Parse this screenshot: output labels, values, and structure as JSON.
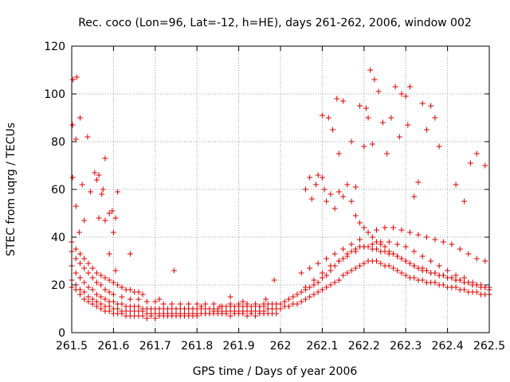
{
  "chart_data": {
    "type": "scatter",
    "title": "Rec. coco (Lon=96, Lat=-12, h=HE), days 261-262, 2006, window 002",
    "xlabel": "GPS time / Days of year 2006",
    "ylabel": "STEC from uqrg / TECUs",
    "xlim": [
      261.5,
      262.5
    ],
    "ylim": [
      0,
      120
    ],
    "x_ticks": [
      261.5,
      261.6,
      261.7,
      261.8,
      261.9,
      262.0,
      262.1,
      262.2,
      262.3,
      262.4,
      262.5
    ],
    "x_tick_labels": [
      "261.5",
      "261.6",
      "261.7",
      "261.8",
      "261.9",
      "262",
      "262.1",
      "262.2",
      "262.3",
      "262.4",
      "262.5"
    ],
    "y_ticks": [
      0,
      20,
      40,
      60,
      80,
      100,
      120
    ],
    "y_tick_labels": [
      "0",
      "20",
      "40",
      "60",
      "80",
      "100",
      "120"
    ],
    "grid": true,
    "marker": "+",
    "color": "#e00000",
    "series": [
      {
        "name": "STEC",
        "x": [
          261.502,
          261.503,
          261.51,
          261.512,
          261.52,
          261.538,
          261.56,
          261.565,
          261.575,
          261.58,
          261.59,
          261.597,
          261.605,
          261.61,
          261.502,
          261.51,
          261.518,
          261.525,
          261.53,
          261.545,
          261.555,
          261.565,
          261.572,
          261.58,
          261.59,
          261.6,
          261.605,
          261.64,
          261.5,
          261.51,
          261.52,
          261.53,
          261.54,
          261.55,
          261.56,
          261.57,
          261.58,
          261.59,
          261.6,
          261.61,
          261.62,
          261.63,
          261.64,
          261.65,
          261.66,
          261.67,
          261.68,
          261.69,
          261.7,
          261.71,
          261.72,
          261.73,
          261.74,
          261.75,
          261.76,
          261.77,
          261.78,
          261.79,
          261.8,
          261.81,
          261.82,
          261.83,
          261.84,
          261.85,
          261.86,
          261.87,
          261.88,
          261.89,
          261.9,
          261.91,
          261.92,
          261.93,
          261.94,
          261.95,
          261.96,
          261.97,
          261.98,
          261.99,
          261.5,
          261.51,
          261.52,
          261.53,
          261.54,
          261.55,
          261.56,
          261.57,
          261.58,
          261.59,
          261.6,
          261.61,
          261.62,
          261.63,
          261.64,
          261.65,
          261.66,
          261.67,
          261.68,
          261.69,
          261.7,
          261.71,
          261.72,
          261.73,
          261.74,
          261.75,
          261.76,
          261.77,
          261.78,
          261.79,
          261.8,
          261.81,
          261.82,
          261.83,
          261.84,
          261.85,
          261.86,
          261.87,
          261.88,
          261.89,
          261.9,
          261.91,
          261.92,
          261.93,
          261.94,
          261.95,
          261.96,
          261.97,
          261.98,
          261.99,
          261.5,
          261.51,
          261.52,
          261.53,
          261.54,
          261.55,
          261.56,
          261.57,
          261.58,
          261.59,
          261.6,
          261.61,
          261.62,
          261.63,
          261.64,
          261.65,
          261.66,
          261.67,
          261.68,
          261.69,
          261.7,
          261.71,
          261.72,
          261.73,
          261.74,
          261.75,
          261.76,
          261.77,
          261.78,
          261.79,
          261.8,
          261.81,
          261.82,
          261.83,
          261.84,
          261.85,
          261.86,
          261.87,
          261.88,
          261.89,
          261.9,
          261.91,
          261.92,
          261.93,
          261.94,
          261.95,
          261.96,
          261.97,
          261.98,
          261.99,
          261.5,
          261.51,
          261.52,
          261.53,
          261.54,
          261.55,
          261.56,
          261.57,
          261.58,
          261.59,
          261.6,
          261.62,
          261.64,
          261.66,
          261.68,
          261.7,
          261.72,
          261.74,
          261.76,
          261.78,
          261.8,
          261.82,
          261.84,
          261.86,
          261.88,
          261.9,
          261.92,
          261.94,
          261.96,
          261.98,
          261.5,
          261.51,
          261.52,
          261.53,
          261.54,
          261.55,
          261.56,
          261.57,
          261.58,
          261.59,
          261.6,
          261.61,
          261.62,
          261.63,
          261.64,
          261.65,
          261.66,
          261.67,
          261.71,
          261.745,
          261.81,
          261.855,
          261.88,
          261.91,
          261.92,
          261.95,
          261.965,
          261.985,
          262.0,
          262.01,
          262.02,
          262.03,
          262.04,
          262.05,
          262.06,
          262.07,
          262.08,
          262.09,
          262.1,
          262.11,
          262.12,
          262.13,
          262.14,
          262.15,
          262.16,
          262.17,
          262.18,
          262.19,
          262.2,
          262.21,
          262.22,
          262.23,
          262.24,
          262.25,
          262.26,
          262.27,
          262.28,
          262.29,
          262.3,
          262.31,
          262.32,
          262.33,
          262.34,
          262.35,
          262.36,
          262.37,
          262.38,
          262.39,
          262.4,
          262.41,
          262.42,
          262.43,
          262.44,
          262.45,
          262.46,
          262.47,
          262.48,
          262.49,
          262.5,
          262.0,
          262.01,
          262.02,
          262.03,
          262.04,
          262.05,
          262.06,
          262.07,
          262.08,
          262.09,
          262.1,
          262.11,
          262.12,
          262.13,
          262.14,
          262.15,
          262.16,
          262.17,
          262.18,
          262.19,
          262.2,
          262.21,
          262.22,
          262.23,
          262.24,
          262.25,
          262.26,
          262.27,
          262.28,
          262.29,
          262.3,
          262.31,
          262.32,
          262.33,
          262.34,
          262.35,
          262.36,
          262.37,
          262.38,
          262.39,
          262.4,
          262.41,
          262.42,
          262.43,
          262.44,
          262.45,
          262.46,
          262.47,
          262.48,
          262.49,
          262.5,
          262.02,
          262.04,
          262.06,
          262.08,
          262.1,
          262.12,
          262.14,
          262.16,
          262.18,
          262.2,
          262.22,
          262.24,
          262.26,
          262.28,
          262.3,
          262.32,
          262.34,
          262.36,
          262.38,
          262.4,
          262.42,
          262.44,
          262.46,
          262.48,
          262.5,
          262.06,
          262.07,
          262.075,
          262.085,
          262.09,
          262.1,
          262.105,
          262.11,
          262.12,
          262.13,
          262.14,
          262.15,
          262.16,
          262.17,
          262.18,
          262.19,
          262.2,
          262.21,
          262.22,
          262.23,
          262.24,
          262.25,
          262.26,
          262.27,
          262.28,
          262.29,
          262.3,
          262.31,
          262.32,
          262.33,
          262.34,
          262.35,
          262.36,
          262.37,
          262.38,
          262.39,
          262.4,
          262.41,
          262.42,
          262.43,
          262.44,
          262.45,
          262.46,
          262.47,
          262.48,
          262.49,
          262.5,
          262.05,
          262.07,
          262.09,
          262.11,
          262.13,
          262.15,
          262.17,
          262.19,
          262.21,
          262.23,
          262.25,
          262.27,
          262.29,
          262.31,
          262.33,
          262.35,
          262.37,
          262.39,
          262.41,
          262.43,
          262.45,
          262.47,
          262.49,
          262.1,
          262.115,
          262.125,
          262.135,
          262.14,
          262.15,
          262.17,
          262.18,
          262.19,
          262.2,
          262.205,
          262.21,
          262.215,
          262.22,
          262.225,
          262.235,
          262.245,
          262.255,
          262.265,
          262.275,
          262.285,
          262.29,
          262.3,
          262.305,
          262.31,
          262.32,
          262.33,
          262.34,
          262.35,
          262.36,
          262.37,
          262.38,
          262.42,
          262.44,
          262.455,
          262.47,
          262.49
        ],
        "y": [
          87,
          106,
          81,
          107,
          90,
          82,
          64,
          66,
          60,
          73,
          50,
          51,
          48,
          59,
          65,
          53,
          42,
          62,
          47,
          59,
          67,
          48,
          58,
          47,
          33,
          42,
          26,
          33,
          19,
          18,
          16,
          14,
          13,
          12,
          11,
          10,
          9,
          9,
          8,
          8,
          8,
          7,
          7,
          7,
          7,
          7,
          6,
          7,
          6,
          7,
          7,
          7,
          7,
          7,
          7,
          7,
          7,
          7,
          7,
          8,
          8,
          8,
          8,
          8,
          8,
          8,
          7,
          8,
          8,
          8,
          7,
          8,
          7,
          8,
          8,
          8,
          8,
          8,
          22,
          20,
          18,
          17,
          15,
          14,
          13,
          12,
          11,
          11,
          10,
          10,
          9,
          9,
          9,
          9,
          9,
          9,
          8,
          8,
          8,
          8,
          8,
          8,
          8,
          8,
          8,
          8,
          8,
          8,
          8,
          8,
          8,
          8,
          9,
          9,
          9,
          9,
          9,
          9,
          9,
          9,
          9,
          9,
          9,
          9,
          9,
          10,
          10,
          10,
          28,
          25,
          23,
          21,
          19,
          18,
          16,
          15,
          14,
          13,
          13,
          12,
          12,
          11,
          11,
          11,
          11,
          10,
          10,
          10,
          10,
          10,
          10,
          10,
          10,
          10,
          10,
          10,
          10,
          10,
          10,
          10,
          10,
          10,
          10,
          10,
          11,
          11,
          11,
          11,
          11,
          11,
          11,
          11,
          11,
          11,
          11,
          12,
          12,
          12,
          34,
          31,
          29,
          27,
          25,
          23,
          21,
          20,
          18,
          17,
          16,
          15,
          14,
          14,
          13,
          13,
          12,
          12,
          12,
          12,
          12,
          12,
          12,
          11,
          12,
          12,
          12,
          12,
          12,
          12,
          38,
          35,
          33,
          31,
          29,
          27,
          25,
          24,
          23,
          22,
          21,
          20,
          19,
          18,
          18,
          17,
          17,
          16,
          14,
          26,
          11,
          11,
          15,
          13,
          12,
          11,
          14,
          22,
          10,
          11,
          11,
          12,
          12,
          13,
          14,
          15,
          16,
          17,
          18,
          19,
          20,
          21,
          22,
          24,
          25,
          26,
          27,
          28,
          29,
          30,
          30,
          30,
          29,
          28,
          28,
          27,
          26,
          25,
          24,
          23,
          23,
          22,
          22,
          21,
          21,
          21,
          20,
          20,
          19,
          19,
          19,
          18,
          18,
          17,
          17,
          17,
          16,
          16,
          16,
          12,
          13,
          14,
          15,
          16,
          17,
          18,
          19,
          20,
          21,
          23,
          24,
          26,
          28,
          30,
          31,
          33,
          34,
          35,
          36,
          36,
          36,
          35,
          35,
          34,
          34,
          33,
          33,
          32,
          31,
          30,
          29,
          28,
          27,
          27,
          26,
          25,
          25,
          24,
          24,
          23,
          23,
          22,
          22,
          21,
          21,
          20,
          20,
          19,
          19,
          19,
          14,
          16,
          19,
          22,
          25,
          28,
          30,
          32,
          34,
          36,
          37,
          38,
          38,
          37,
          36,
          34,
          32,
          30,
          28,
          26,
          24,
          23,
          21,
          20,
          19,
          60,
          65,
          56,
          62,
          66,
          65,
          60,
          55,
          58,
          52,
          59,
          57,
          62,
          55,
          49,
          46,
          44,
          42,
          40,
          38,
          37,
          36,
          34,
          33,
          32,
          31,
          30,
          29,
          28,
          27,
          26,
          26,
          25,
          25,
          24,
          24,
          23,
          23,
          22,
          22,
          21,
          21,
          20,
          20,
          19,
          19,
          18,
          25,
          27,
          29,
          31,
          33,
          35,
          37,
          39,
          42,
          43,
          44,
          44,
          43,
          42,
          41,
          40,
          39,
          38,
          37,
          35,
          33,
          31,
          30,
          91,
          90,
          85,
          98,
          75,
          97,
          80,
          61,
          95,
          78,
          94,
          90,
          110,
          79,
          106,
          101,
          88,
          75,
          90,
          103,
          82,
          100,
          99,
          87,
          103,
          57,
          63,
          96,
          85,
          95,
          90,
          78,
          62,
          55,
          71,
          75,
          70
        ]
      }
    ]
  }
}
